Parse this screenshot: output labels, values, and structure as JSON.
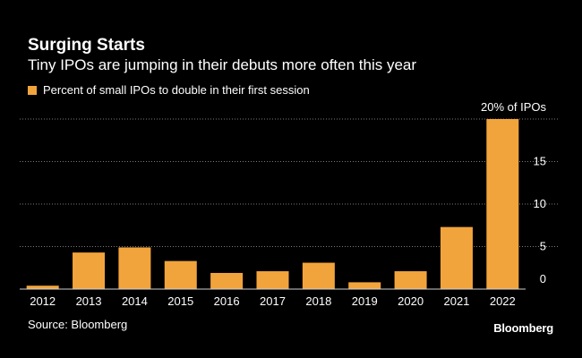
{
  "header": {
    "title": "Surging Starts",
    "subtitle": "Tiny IPOs are jumping in their debuts more often this year"
  },
  "legend": {
    "label": "Percent of small IPOs to double in their first session"
  },
  "footer": {
    "source": "Source: Bloomberg",
    "logo": "Bloomberg"
  },
  "colors": {
    "background": "#000000",
    "bar": "#f2a43c",
    "grid": "#7a7a7a",
    "text": "#ffffff"
  },
  "chart_data": {
    "type": "bar",
    "title": "Surging Starts",
    "subtitle": "Tiny IPOs are jumping in their debuts more often this year",
    "categories": [
      "2012",
      "2013",
      "2014",
      "2015",
      "2016",
      "2017",
      "2018",
      "2019",
      "2020",
      "2021",
      "2022"
    ],
    "series": [
      {
        "name": "Percent of small IPOs to double in their first session",
        "values": [
          0.4,
          4.3,
          4.9,
          3.3,
          1.9,
          2.1,
          3.1,
          0.8,
          2.1,
          7.3,
          20
        ]
      }
    ],
    "xlabel": "",
    "ylabel": "",
    "ylim": [
      0,
      20
    ],
    "yticks": [
      0,
      5,
      10,
      15
    ],
    "ytick_labels": [
      "0",
      "5",
      "10",
      "15"
    ],
    "top_label": "20% of IPOs",
    "grid": true,
    "legend_position": "top-left",
    "y_axis_side": "right"
  }
}
